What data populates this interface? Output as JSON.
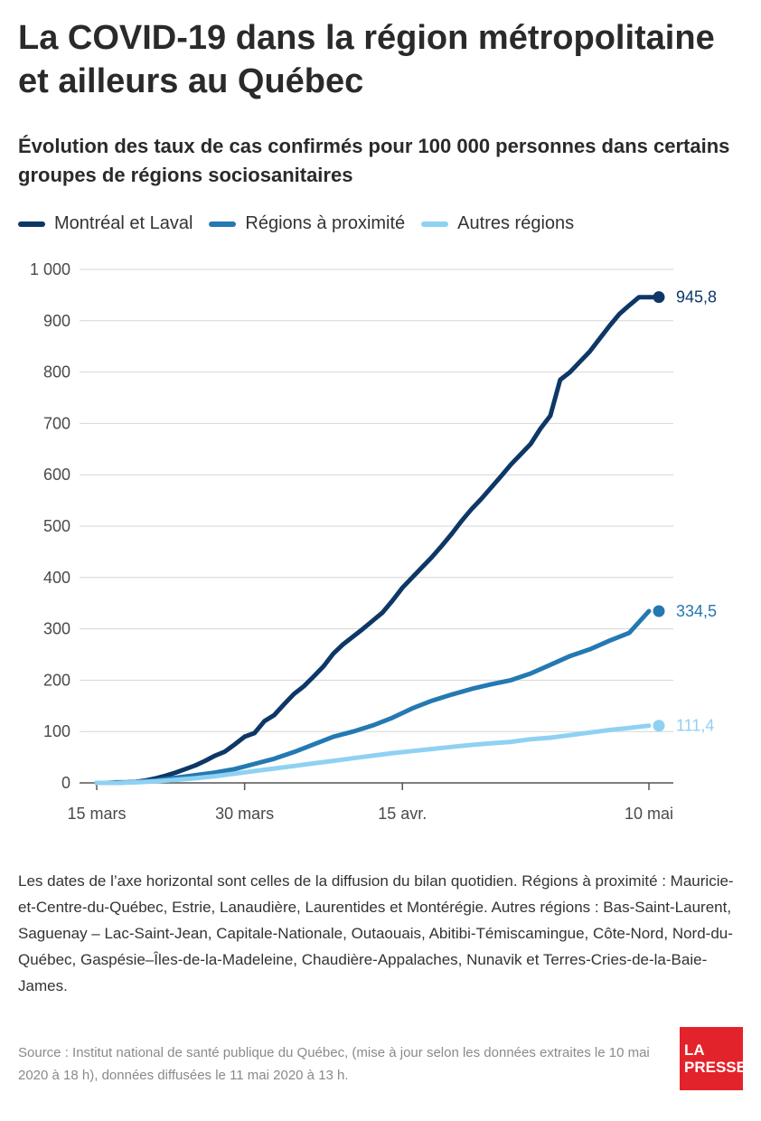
{
  "title": "La COVID-19 dans la région métropolitaine et ailleurs au Québec",
  "subtitle": "Évolution des taux de cas confirmés pour 100 000 personnes dans certains groupes de régions sociosanitaires",
  "legend": [
    {
      "label": "Montréal et Laval",
      "color": "#0d3766"
    },
    {
      "label": "Régions à proximité",
      "color": "#2479b2"
    },
    {
      "label": "Autres régions",
      "color": "#8fd1f2"
    }
  ],
  "chart_data": {
    "type": "line",
    "x_unit": "days",
    "x_tick_positions": [
      0,
      15,
      31,
      56
    ],
    "x_tick_labels": [
      "15 mars",
      "30 mars",
      "15 avr.",
      "10 mai"
    ],
    "ylim": [
      0,
      1000
    ],
    "y_ticks": [
      0,
      100,
      200,
      300,
      400,
      500,
      600,
      700,
      800,
      900,
      1000
    ],
    "y_tick_labels": [
      "0",
      "100",
      "200",
      "300",
      "400",
      "500",
      "600",
      "700",
      "800",
      "900",
      "1 000"
    ],
    "grid": true,
    "series": [
      {
        "name": "Montréal et Laval",
        "color": "#0d3766",
        "end_label": "945,8",
        "x": [
          0,
          1,
          2,
          3,
          4,
          5,
          6,
          7,
          8,
          9,
          10,
          11,
          12,
          13,
          14,
          15,
          16,
          17,
          18,
          19,
          20,
          21,
          22,
          23,
          24,
          25,
          26,
          27,
          28,
          29,
          30,
          31,
          32,
          33,
          34,
          35,
          36,
          37,
          38,
          39,
          40,
          41,
          42,
          43,
          44,
          45,
          46,
          47,
          48,
          49,
          50,
          51,
          52,
          53,
          54,
          55,
          56,
          57
        ],
        "y": [
          0,
          0,
          1,
          1,
          2,
          5,
          9,
          14,
          20,
          27,
          34,
          43,
          53,
          61,
          75,
          90,
          97,
          120,
          132,
          153,
          173,
          188,
          207,
          227,
          252,
          270,
          285,
          300,
          316,
          332,
          355,
          380,
          400,
          420,
          440,
          462,
          485,
          510,
          533,
          553,
          575,
          597,
          620,
          640,
          660,
          690,
          715,
          785,
          800,
          820,
          840,
          865,
          890,
          913,
          930,
          946,
          946,
          946
        ]
      },
      {
        "name": "Régions à proximité",
        "color": "#2479b2",
        "end_label": "334,5",
        "x": [
          0,
          2,
          4,
          6,
          8,
          10,
          12,
          14,
          16,
          18,
          20,
          22,
          24,
          26,
          28,
          30,
          32,
          34,
          36,
          38,
          40,
          42,
          44,
          46,
          48,
          50,
          52,
          54,
          56
        ],
        "y": [
          0,
          0,
          2,
          5,
          10,
          15,
          20,
          27,
          37,
          47,
          60,
          75,
          90,
          100,
          112,
          127,
          145,
          160,
          172,
          183,
          192,
          200,
          213,
          230,
          247,
          260,
          277,
          292,
          334.5
        ]
      },
      {
        "name": "Autres régions",
        "color": "#8fd1f2",
        "end_label": "111,4",
        "x": [
          0,
          2,
          4,
          6,
          8,
          10,
          12,
          14,
          16,
          18,
          20,
          22,
          24,
          26,
          28,
          30,
          32,
          34,
          36,
          38,
          40,
          42,
          44,
          46,
          48,
          50,
          52,
          54,
          56
        ],
        "y": [
          0,
          0,
          1,
          3,
          6,
          9,
          13,
          18,
          23,
          28,
          33,
          38,
          43,
          48,
          53,
          58,
          62,
          66,
          70,
          74,
          77,
          80,
          85,
          88,
          93,
          98,
          103,
          107,
          111.4
        ]
      }
    ]
  },
  "note": "Les dates de l’axe horizontal sont celles de la diffusion du bilan quotidien. Régions à proximité : Mauricie-et-Centre-du-Québec, Estrie, Lanaudière, Laurentides et Montérégie. Autres régions : Bas-Saint-Laurent, Saguenay – Lac-Saint-Jean, Capitale-Nationale, Outaouais, Abitibi-Témiscamingue, Côte-Nord, Nord-du-Québec, Gaspésie–Îles-de-la-Madeleine, Chaudière-Appalaches, Nunavik et Terres-Cries-de-la-Baie-James.",
  "source": "Source : Institut national de santé publique du Québec, (mise à jour selon les données extraites le 10 mai 2020 à 18 h), données diffusées le 11 mai 2020 à 13 h.",
  "logo": {
    "line1": "LA",
    "line2": "PRESSE",
    "color": "#e3232b"
  }
}
